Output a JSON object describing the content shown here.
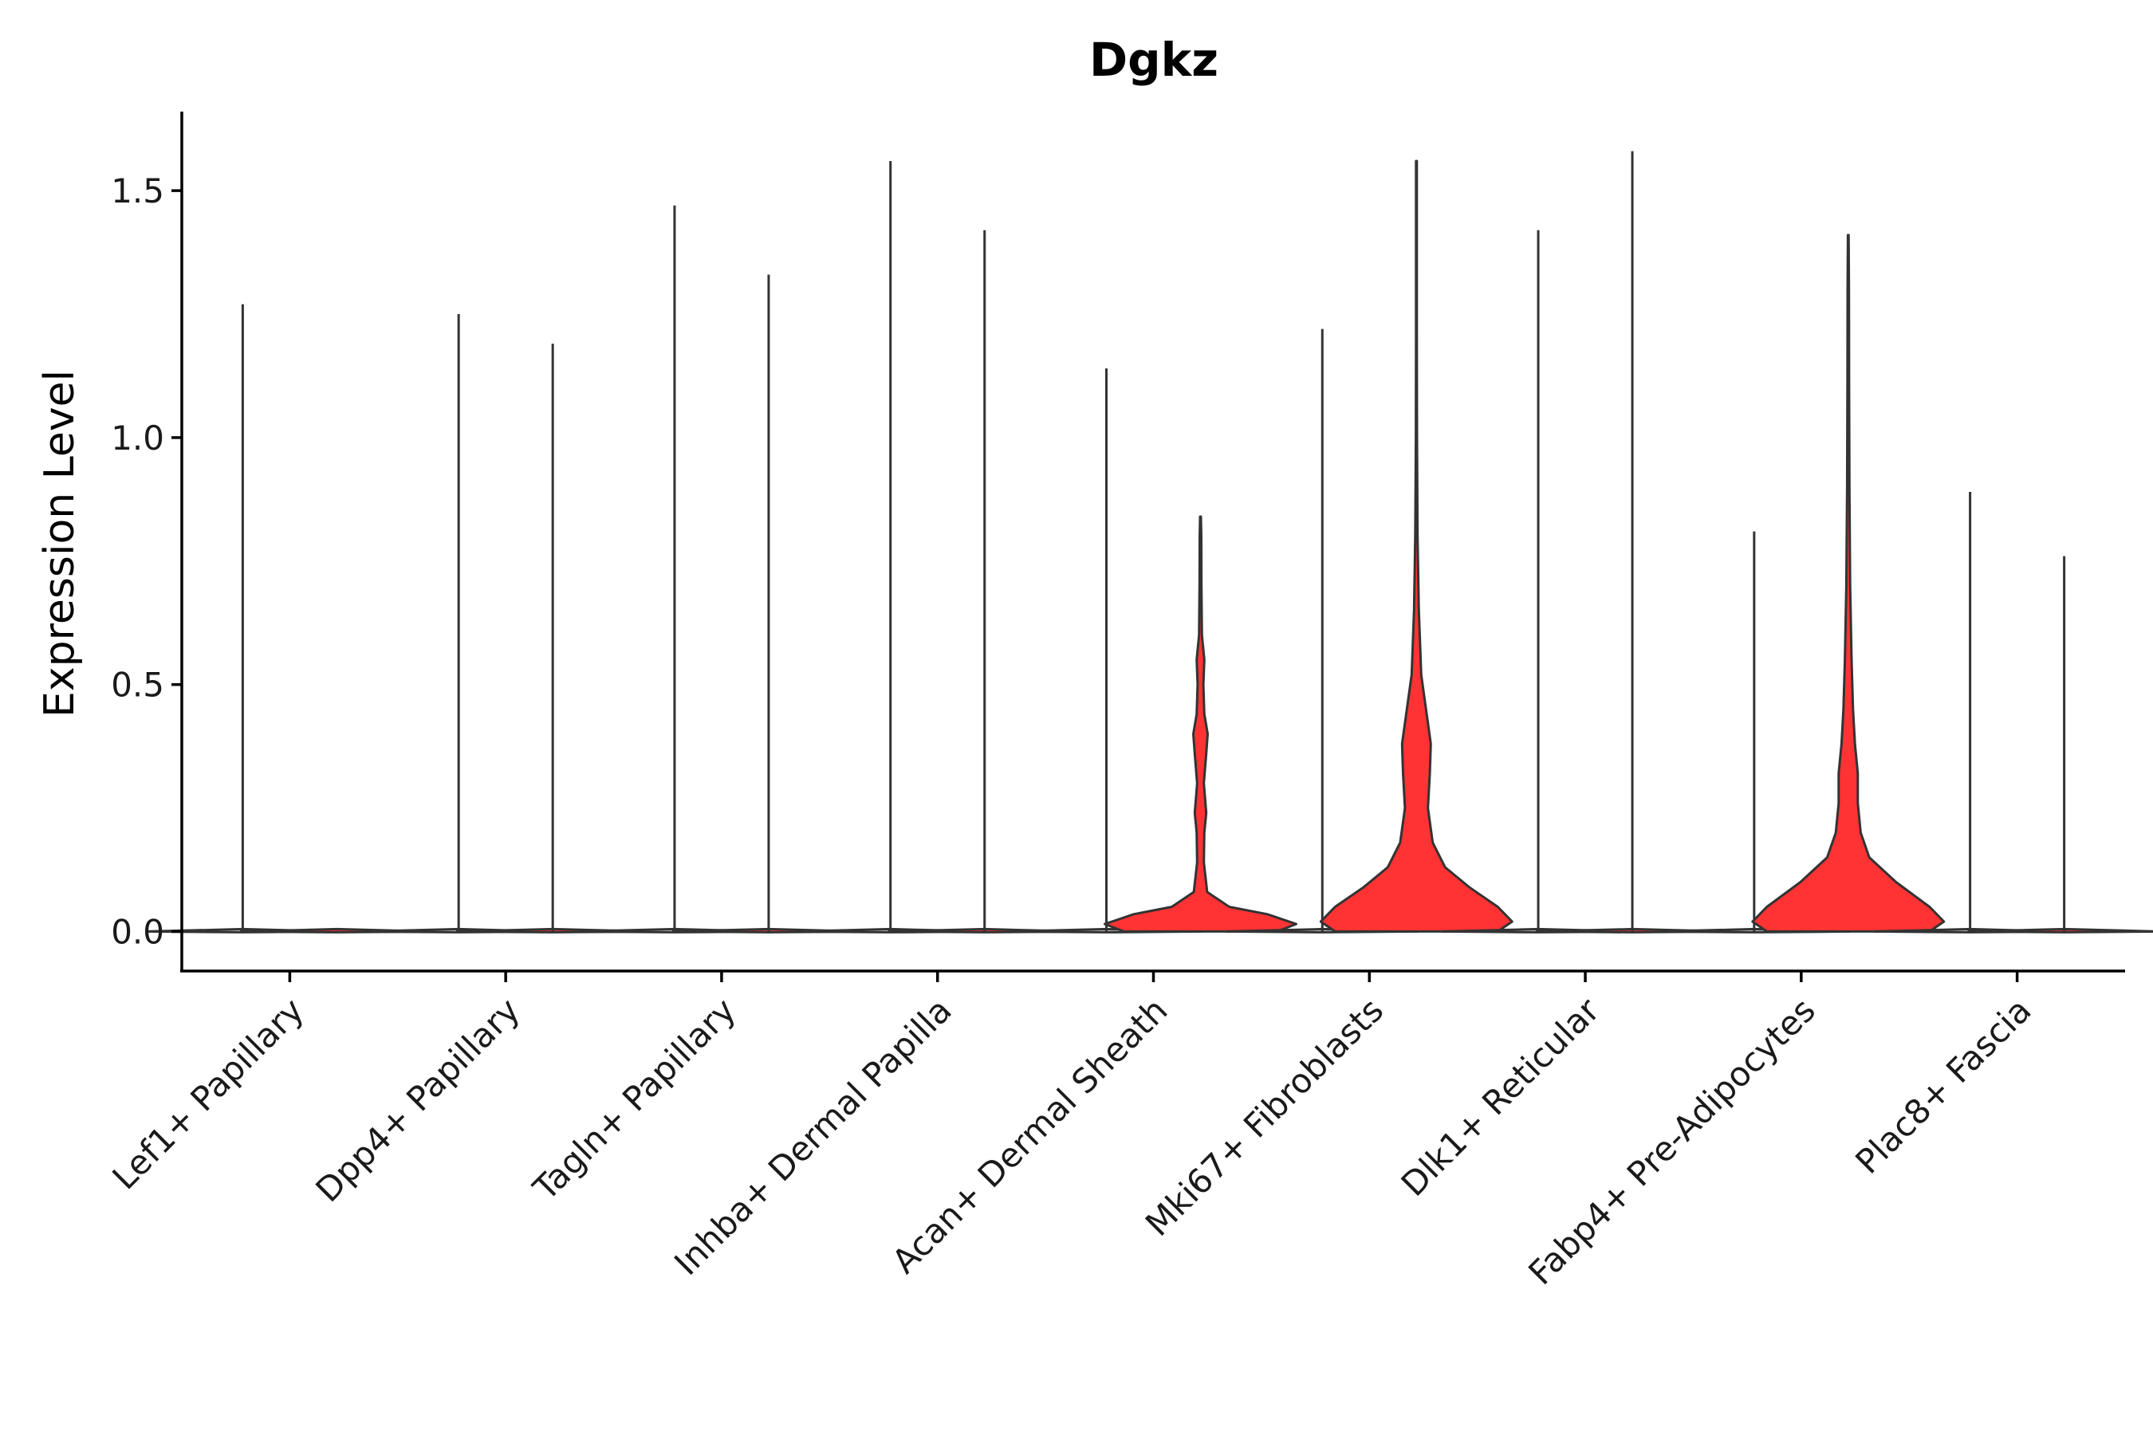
{
  "chart_data": {
    "type": "violin",
    "title": "Dgkz",
    "xlabel": "",
    "ylabel": "Expression Level",
    "ylim": [
      -0.08,
      1.66
    ],
    "yticks": [
      "0.0",
      "0.5",
      "1.0",
      "1.5"
    ],
    "ytick_values": [
      0,
      0.5,
      1.0,
      1.5
    ],
    "grid": false,
    "legend": "none",
    "categories": [
      "Lef1+ Papillary",
      "Dpp4+ Papillary",
      "Tagln+ Papillary",
      "Inhba+ Dermal Papilla",
      "Acan+ Dermal Sheath",
      "Mki67+ Fibroblasts",
      "Dlk1+ Reticular",
      "Fabp4+ Pre-Adipocytes",
      "Plac8+ Fascia"
    ],
    "series": [
      {
        "values": [
          1.27,
          1.25,
          1.47,
          1.56,
          1.14,
          1.22,
          1.42,
          0.81,
          0.89
        ],
        "color": "#d9d9d9"
      },
      {
        "values": [
          0,
          1.19,
          1.33,
          1.42,
          0.84,
          1.56,
          1.58,
          1.41,
          0.76
        ],
        "color": "#ff3333"
      }
    ],
    "colors": {
      "low": "#d9d9d9",
      "high": "#ff3333",
      "outline": "#333333"
    }
  }
}
